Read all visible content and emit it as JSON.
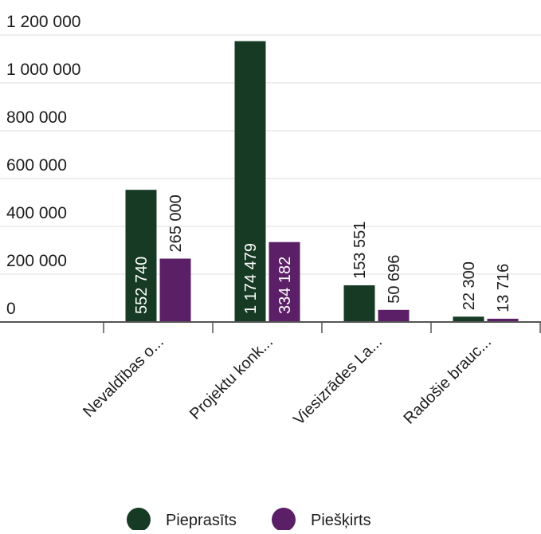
{
  "chart_data": {
    "type": "bar",
    "categories": [
      "Nevaldības o...",
      "Projektu konk...",
      "Viesizrādes La...",
      "Radošie brauc..."
    ],
    "series": [
      {
        "name": "Pieprasīts",
        "values": [
          552740,
          1174479,
          153551,
          22300
        ],
        "labels": [
          "552 740",
          "1 174 479",
          "153 551",
          "22 300"
        ],
        "color": "#163a24"
      },
      {
        "name": "Piešķirts",
        "values": [
          265000,
          334182,
          50696,
          13716
        ],
        "labels": [
          "265 000",
          "334 182",
          "50 696",
          "13 716"
        ],
        "color": "#5a1f66"
      }
    ],
    "yticks": [
      0,
      200000,
      400000,
      600000,
      800000,
      1000000,
      1200000
    ],
    "ytick_labels": [
      "0",
      "200 000",
      "400 000",
      "600 000",
      "800 000",
      "1 000 000",
      "1 200 000"
    ],
    "ylim": [
      0,
      1200000
    ],
    "grid": true,
    "legend_position": "bottom-center",
    "axis_color": "#555555",
    "grid_color": "#dddddd"
  }
}
